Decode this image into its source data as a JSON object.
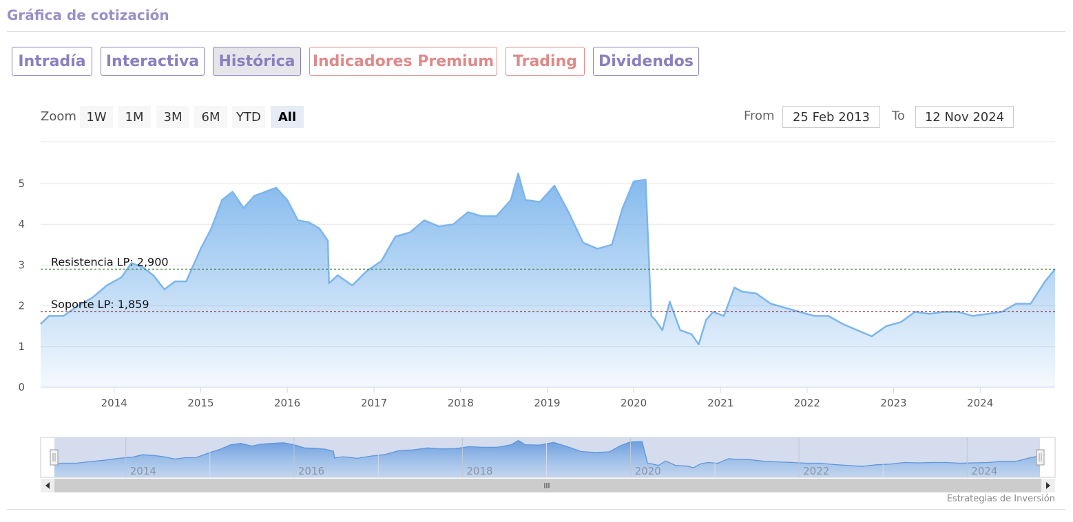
{
  "page": {
    "title": "Gráfica de cotización",
    "credit": "Estrategias de Inversión"
  },
  "tabs": [
    {
      "label": "Intradía",
      "state": "normal"
    },
    {
      "label": "Interactiva",
      "state": "normal"
    },
    {
      "label": "Histórica",
      "state": "active"
    },
    {
      "label": "Indicadores Premium",
      "state": "premium"
    },
    {
      "label": "Trading",
      "state": "premium"
    },
    {
      "label": "Dividendos",
      "state": "normal"
    }
  ],
  "range_selector": {
    "zoom_label": "Zoom",
    "buttons": [
      "1W",
      "1M",
      "3M",
      "6M",
      "YTD",
      "All"
    ],
    "active": "All",
    "from_label": "From",
    "from_value": "25 Feb 2013",
    "to_label": "To",
    "to_value": "12 Nov 2024"
  },
  "colors": {
    "line": "#7cb5ec",
    "resistance": "#2e7d32",
    "support": "#8b1c1c",
    "tab_text": "#8a80c0",
    "premium_text": "#df8a8a"
  },
  "chart_data": {
    "type": "area",
    "title": "",
    "xlabel": "",
    "ylabel": "",
    "xlim": [
      "2013-02-25",
      "2024-11-12"
    ],
    "ylim": [
      0,
      5
    ],
    "y_ticks": [
      "0",
      "1",
      "2",
      "3",
      "4",
      "5"
    ],
    "x_ticks": [
      "2014",
      "2015",
      "2016",
      "2017",
      "2018",
      "2019",
      "2020",
      "2021",
      "2022",
      "2023",
      "2024"
    ],
    "navigator_ticks": [
      "2014",
      "2016",
      "2018",
      "2020",
      "2022",
      "2024"
    ],
    "grid": true,
    "series": [
      {
        "x": [
          "2013-02-25",
          "2013-04-01",
          "2013-06-01",
          "2013-08-01",
          "2013-10-01",
          "2013-12-01",
          "2014-02-01",
          "2014-03-15",
          "2014-05-01",
          "2014-06-15",
          "2014-08-01",
          "2014-09-15",
          "2014-11-01",
          "2015-01-01",
          "2015-02-15",
          "2015-04-01",
          "2015-05-15",
          "2015-07-01",
          "2015-08-15",
          "2015-10-01",
          "2015-11-15",
          "2016-01-01",
          "2016-02-15",
          "2016-04-01",
          "2016-05-15",
          "2016-06-20",
          "2016-06-25",
          "2016-08-01",
          "2016-10-01",
          "2016-12-01",
          "2017-02-01",
          "2017-04-01",
          "2017-06-01",
          "2017-08-01",
          "2017-10-01",
          "2017-12-01",
          "2018-02-01",
          "2018-04-01",
          "2018-06-01",
          "2018-08-01",
          "2018-09-01",
          "2018-10-01",
          "2018-12-01",
          "2019-02-01",
          "2019-04-01",
          "2019-06-01",
          "2019-08-01",
          "2019-10-01",
          "2019-11-15",
          "2020-01-01",
          "2020-02-20",
          "2020-03-15",
          "2020-04-01",
          "2020-05-01",
          "2020-06-01",
          "2020-07-15",
          "2020-09-01",
          "2020-10-01",
          "2020-11-01",
          "2020-12-01",
          "2021-01-15",
          "2021-03-01",
          "2021-04-01",
          "2021-06-01",
          "2021-08-01",
          "2021-10-01",
          "2021-12-01",
          "2022-02-01",
          "2022-04-01",
          "2022-06-01",
          "2022-08-01",
          "2022-10-01",
          "2022-12-01",
          "2023-02-01",
          "2023-04-01",
          "2023-06-01",
          "2023-08-01",
          "2023-10-01",
          "2023-12-01",
          "2024-02-01",
          "2024-04-01",
          "2024-06-01",
          "2024-08-01",
          "2024-10-01",
          "2024-11-12"
        ],
        "values": [
          1.55,
          1.75,
          1.75,
          2.0,
          2.2,
          2.5,
          2.7,
          3.05,
          2.95,
          2.75,
          2.4,
          2.6,
          2.6,
          3.4,
          3.9,
          4.6,
          4.8,
          4.4,
          4.7,
          4.8,
          4.9,
          4.6,
          4.1,
          4.05,
          3.9,
          3.6,
          2.55,
          2.75,
          2.5,
          2.85,
          3.1,
          3.7,
          3.8,
          4.1,
          3.95,
          4.0,
          4.3,
          4.2,
          4.2,
          4.6,
          5.25,
          4.6,
          4.55,
          4.95,
          4.3,
          3.55,
          3.4,
          3.5,
          4.4,
          5.05,
          5.1,
          1.75,
          1.65,
          1.4,
          2.1,
          1.4,
          1.3,
          1.05,
          1.65,
          1.85,
          1.75,
          2.45,
          2.35,
          2.3,
          2.05,
          1.95,
          1.85,
          1.75,
          1.75,
          1.55,
          1.4,
          1.25,
          1.5,
          1.6,
          1.85,
          1.8,
          1.85,
          1.85,
          1.75,
          1.8,
          1.85,
          2.05,
          2.05,
          2.6,
          2.9
        ]
      }
    ],
    "annotations": [
      {
        "label": "Resistencia LP: 2,900",
        "value": 2.9,
        "color": "#2e7d32"
      },
      {
        "label": "Soporte LP: 1,859",
        "value": 1.859,
        "color": "#8b1c1c"
      }
    ]
  }
}
